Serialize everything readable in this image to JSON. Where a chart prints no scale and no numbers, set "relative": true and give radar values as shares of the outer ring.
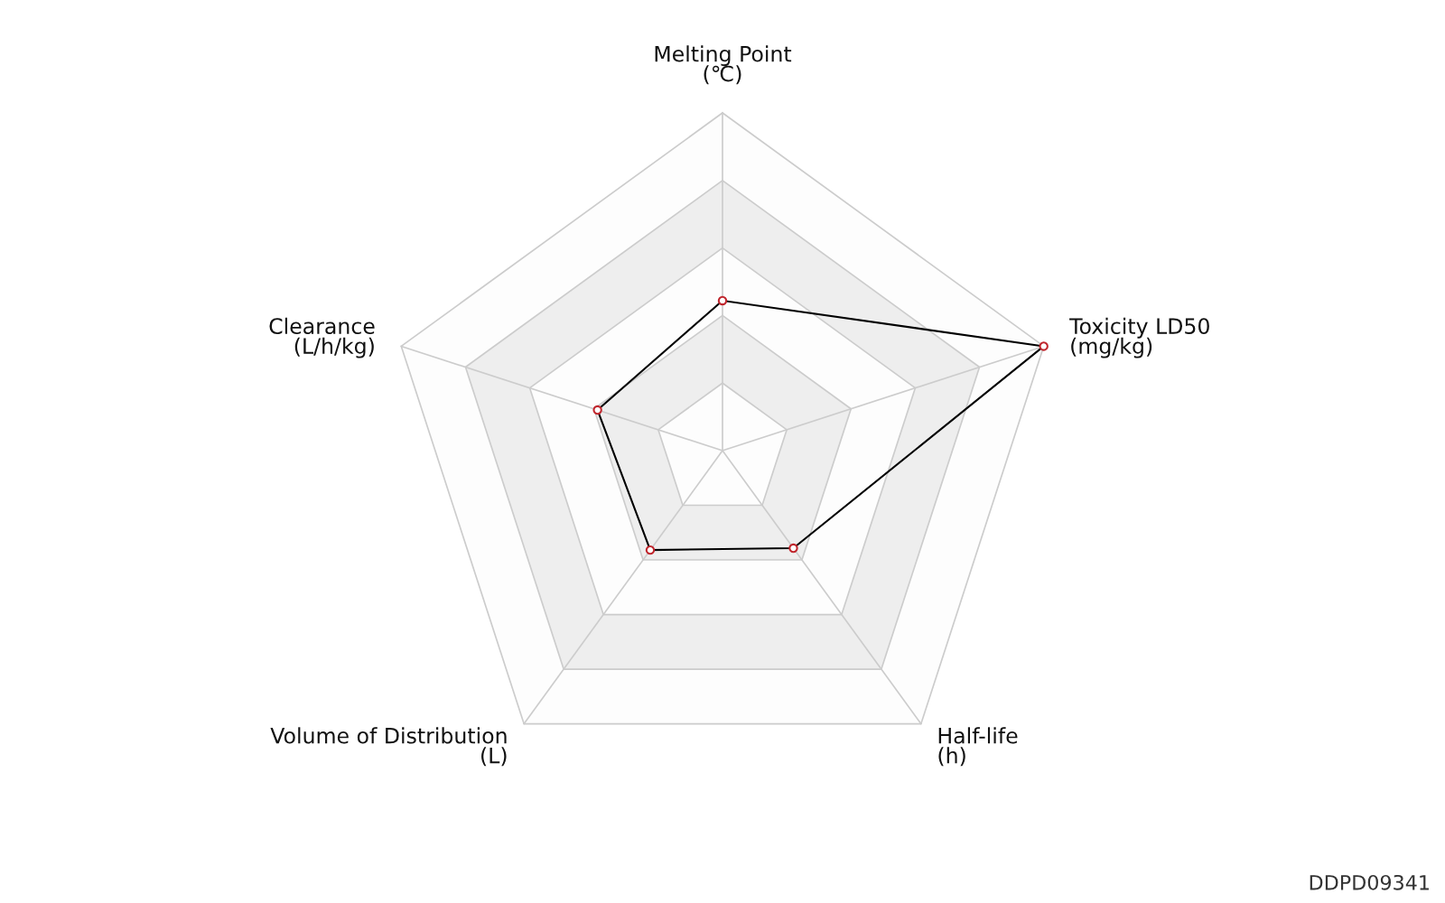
{
  "chart_data": {
    "type": "radar",
    "relative": true,
    "grid": true,
    "marker": "circle",
    "line_style": "solid",
    "categories": [
      "Melting Point\n(℃)",
      "Toxicity LD50\n(mg/kg)",
      "Half-life\n(h)",
      "Volume of Distribution\n(L)",
      "Clearance\n(L/h/kg)"
    ],
    "series": [
      {
        "color": "#000000",
        "values": [
          0.444,
          1.0,
          0.357,
          0.364,
          0.389
        ]
      }
    ],
    "annotations": [
      "DDPD09341"
    ]
  }
}
